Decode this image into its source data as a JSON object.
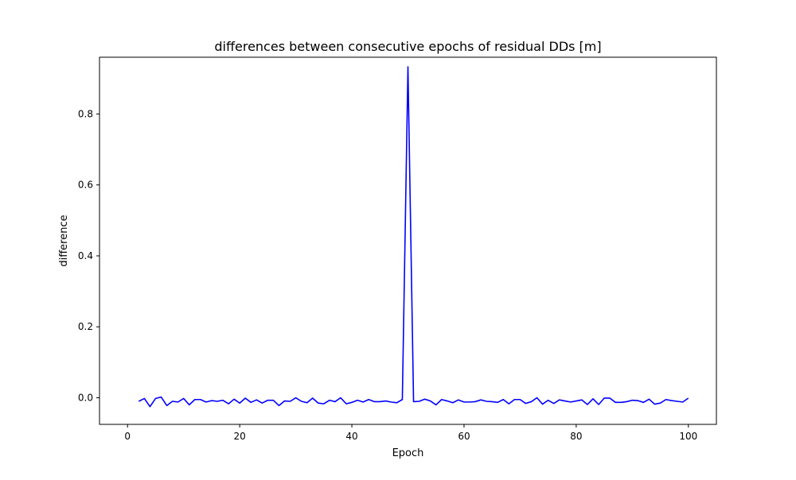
{
  "chart_data": {
    "type": "line",
    "title": "differences between consecutive epochs of residual DDs [m]",
    "xlabel": "Epoch",
    "ylabel": "difference",
    "xlim": [
      -5,
      105
    ],
    "ylim": [
      -0.075,
      0.96
    ],
    "xticks": [
      0,
      20,
      40,
      60,
      80,
      100
    ],
    "xtick_labels": [
      "0",
      "20",
      "40",
      "60",
      "80",
      "100"
    ],
    "yticks": [
      0.0,
      0.2,
      0.4,
      0.6,
      0.8
    ],
    "ytick_labels": [
      "0.0",
      "0.2",
      "0.4",
      "0.6",
      "0.8"
    ],
    "grid": false,
    "legend": "none",
    "series": [
      {
        "color": "#0000ff",
        "x": [
          2,
          3,
          4,
          5,
          6,
          7,
          8,
          9,
          10,
          11,
          12,
          13,
          14,
          15,
          16,
          17,
          18,
          19,
          20,
          21,
          22,
          23,
          24,
          25,
          26,
          27,
          28,
          29,
          30,
          31,
          32,
          33,
          34,
          35,
          36,
          37,
          38,
          39,
          40,
          41,
          42,
          43,
          44,
          45,
          46,
          47,
          48,
          49,
          50,
          51,
          52,
          53,
          54,
          55,
          56,
          57,
          58,
          59,
          60,
          61,
          62,
          63,
          64,
          65,
          66,
          67,
          68,
          69,
          70,
          71,
          72,
          73,
          74,
          75,
          76,
          77,
          78,
          79,
          80,
          81,
          82,
          83,
          84,
          85,
          86,
          87,
          88,
          89,
          90,
          91,
          92,
          93,
          94,
          95,
          96,
          97,
          98,
          99,
          100
        ],
        "y": [
          -0.01,
          -0.002,
          -0.025,
          -0.002,
          0.002,
          -0.022,
          -0.01,
          -0.012,
          -0.002,
          -0.02,
          -0.005,
          -0.005,
          -0.012,
          -0.008,
          -0.01,
          -0.007,
          -0.017,
          -0.004,
          -0.015,
          -0.001,
          -0.013,
          -0.006,
          -0.015,
          -0.007,
          -0.007,
          -0.022,
          -0.009,
          -0.01,
          0.0,
          -0.01,
          -0.014,
          -0.001,
          -0.015,
          -0.017,
          -0.007,
          -0.011,
          0.0,
          -0.017,
          -0.013,
          -0.007,
          -0.012,
          -0.005,
          -0.011,
          -0.011,
          -0.009,
          -0.012,
          -0.014,
          -0.005,
          0.933,
          -0.011,
          -0.01,
          -0.004,
          -0.009,
          -0.02,
          -0.005,
          -0.009,
          -0.014,
          -0.006,
          -0.012,
          -0.012,
          -0.011,
          -0.006,
          -0.01,
          -0.011,
          -0.013,
          -0.005,
          -0.017,
          -0.005,
          -0.005,
          -0.016,
          -0.011,
          0.0,
          -0.018,
          -0.007,
          -0.016,
          -0.006,
          -0.009,
          -0.012,
          -0.009,
          -0.006,
          -0.019,
          -0.003,
          -0.019,
          -0.001,
          -0.001,
          -0.013,
          -0.013,
          -0.011,
          -0.007,
          -0.008,
          -0.013,
          -0.004,
          -0.018,
          -0.015,
          -0.005,
          -0.008,
          -0.01,
          -0.012,
          -0.001
        ]
      }
    ]
  }
}
